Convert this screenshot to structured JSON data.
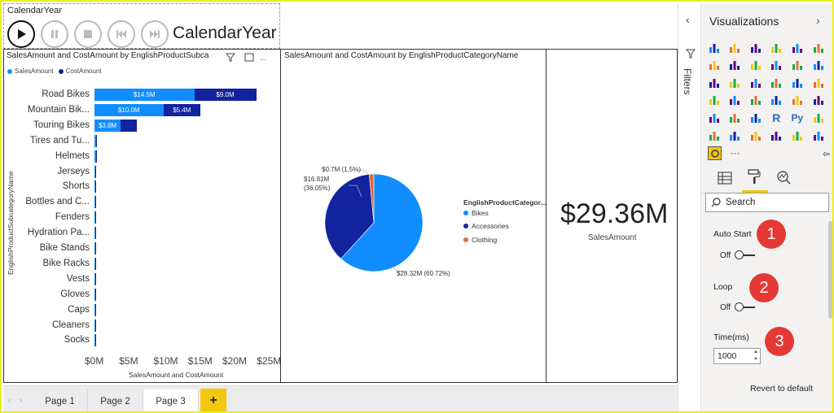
{
  "play_axis": {
    "title": "CalendarYear",
    "current_value": "CalendarYear",
    "buttons": [
      "play-icon",
      "pause-icon",
      "stop-icon",
      "previous-icon",
      "next-icon"
    ]
  },
  "bar_visual": {
    "title": "SalesAmount and CostAmount by EnglishProductSubca",
    "legend": [
      {
        "name": "SalesAmount",
        "color": "#118dff"
      },
      {
        "name": "CostAmount",
        "color": "#12239e"
      }
    ],
    "x_axis_title": "SalesAmount and CostAmount",
    "y_axis_title": "EnglishProductSubcategoryName"
  },
  "pie_visual": {
    "title": "SalesAmount and CostAmount by EnglishProductCategoryName",
    "legend_title": "EnglishProductCategor...",
    "legend": [
      {
        "name": "Bikes",
        "color": "#118dff"
      },
      {
        "name": "Accessories",
        "color": "#12239e"
      },
      {
        "name": "Clothing",
        "color": "#e66c37"
      }
    ],
    "labels": {
      "small": "$0.7M (1.5%)",
      "mid_1": "$16.81M",
      "mid_2": "(36.05%)",
      "large": "$28.32M (60.72%)"
    }
  },
  "card_visual": {
    "value": "$29.36M",
    "label": "SalesAmount"
  },
  "chart_data": [
    {
      "type": "bar",
      "orientation": "horizontal",
      "stacked": true,
      "categories": [
        "Road Bikes",
        "Mountain Bik...",
        "Touring Bikes",
        "Tires and Tu...",
        "Helmets",
        "Jerseys",
        "Shorts",
        "Bottles and C...",
        "Fenders",
        "Hydration Pa...",
        "Bike Stands",
        "Bike Racks",
        "Vests",
        "Gloves",
        "Caps",
        "Cleaners",
        "Socks"
      ],
      "series": [
        {
          "name": "SalesAmount",
          "values": [
            14.5,
            10.0,
            3.8,
            0.25,
            0.22,
            0.17,
            0.07,
            0.06,
            0.05,
            0.04,
            0.04,
            0.04,
            0.04,
            0.03,
            0.02,
            0.01,
            0.01
          ],
          "data_labels": [
            "$14.5M",
            "$10.0M",
            "$3.8M",
            "",
            "",
            "",
            "",
            "",
            "",
            "",
            "",
            "",
            "",
            "",
            "",
            "",
            ""
          ]
        },
        {
          "name": "CostAmount",
          "values": [
            9.0,
            5.4,
            2.3,
            0.1,
            0.08,
            0.07,
            0.03,
            0.02,
            0.02,
            0.02,
            0.02,
            0.02,
            0.02,
            0.01,
            0.01,
            0.01,
            0.01
          ],
          "data_labels": [
            "$9.0M",
            "$5.4M",
            "",
            "",
            "",
            "",
            "",
            "",
            "",
            "",
            "",
            "",
            "",
            "",
            "",
            "",
            ""
          ]
        }
      ],
      "x_ticks": [
        "$0M",
        "$5M",
        "$10M",
        "$15M",
        "$20M",
        "$25M"
      ],
      "xlim": [
        0,
        25
      ],
      "xlabel": "SalesAmount and CostAmount",
      "ylabel": "EnglishProductSubcategoryName",
      "legend_position": "top-left"
    },
    {
      "type": "pie",
      "categories": [
        "Bikes",
        "Accessories",
        "Clothing"
      ],
      "values": [
        28.32,
        16.81,
        0.7
      ],
      "percent": [
        60.72,
        36.05,
        1.5
      ],
      "legend_position": "right"
    }
  ],
  "page_tabs": [
    {
      "label": "Page 1",
      "active": false
    },
    {
      "label": "Page 2",
      "active": false
    },
    {
      "label": "Page 3",
      "active": true
    }
  ],
  "add_tab": "+",
  "filters_pane": {
    "label": "Filters"
  },
  "viz_pane": {
    "title": "Visualizations",
    "icon_rows": [
      [
        "stacked-bar-icon",
        "stacked-column-icon",
        "clustered-bar-icon",
        "clustered-column-icon",
        "100-bar-icon",
        "100-column-icon"
      ],
      [
        "line-icon",
        "area-icon",
        "stacked-area-icon",
        "line-column-icon",
        "line-clustered-icon",
        "ribbon-icon"
      ],
      [
        "waterfall-icon",
        "scatter-icon",
        "pie-icon",
        "donut-icon",
        "treemap-icon",
        "map-icon"
      ],
      [
        "filled-map-icon",
        "funnel-icon",
        "gauge-icon",
        "card-icon",
        "multirow-card-icon",
        "kpi-icon"
      ],
      [
        "slicer-icon",
        "table-icon",
        "matrix-icon",
        "r-visual-icon",
        "python-visual-icon",
        "key-influencers-icon"
      ],
      [
        "decomposition-tree-icon",
        "arcgis-icon",
        "power-apps-icon",
        "donut-green-icon",
        "qna-icon",
        "smart-narrative-icon"
      ]
    ],
    "extra_icons": [
      "play-axis-icon",
      "more-icon"
    ],
    "more_text": "···",
    "r_text": "R",
    "py_text": "Py",
    "search_placeholder": "Search",
    "options": [
      {
        "label": "Auto Start",
        "toggle_text": "Off",
        "badge": "1"
      },
      {
        "label": "Loop",
        "toggle_text": "Off",
        "badge": "2"
      }
    ],
    "time_label": "Time(ms)",
    "time_value": "1000",
    "time_badge": "3",
    "revert_label": "Revert to default"
  }
}
